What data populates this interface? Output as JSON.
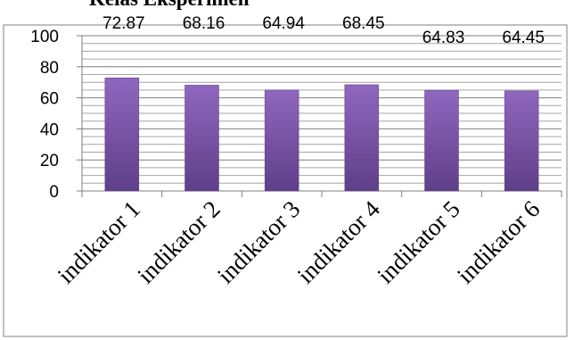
{
  "chart_data": {
    "type": "bar",
    "title": "Kelas Eksperimen",
    "categories": [
      "indikator 1",
      "indikator 2",
      "indikator 3",
      "indikator 4",
      "indikator 5",
      "indikator 6"
    ],
    "values": [
      72.87,
      68.16,
      64.94,
      68.45,
      64.83,
      64.45
    ],
    "data_labels": [
      "72.87",
      "68.16",
      "64.94",
      "68.45",
      "64.83",
      "64.45"
    ],
    "ylim": [
      0,
      100
    ],
    "yticks": [
      0,
      20,
      40,
      60,
      80,
      100
    ],
    "grid": true,
    "bar_color": "#7a55a8",
    "bar_color_light": "#8f67bf",
    "bar_color_dark": "#5e3f88",
    "xlabel": "",
    "ylabel": ""
  }
}
